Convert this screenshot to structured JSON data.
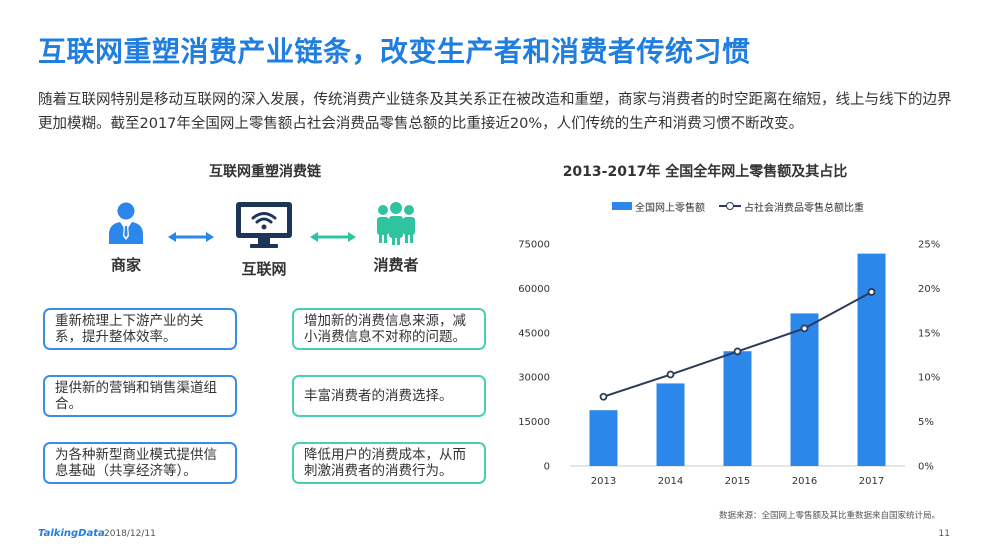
{
  "slide": {
    "title": "互联网重塑消费产业链条，改变生产者和消费者传统习惯",
    "intro": "随着互联网特别是移动互联网的深入发展，传统消费产业链条及其关系正在被改造和重塑，商家与消费者的时空距离在缩短，线上与线下的边界更加模糊。截至2017年全国网上零售额占社会消费品零售总额的比重接近20%，人们传统的生产和消费习惯不断改变。"
  },
  "chain": {
    "title": "互联网重塑消费链",
    "nodes": {
      "merchant": "商家",
      "internet": "互联网",
      "consumer": "消费者"
    },
    "left_boxes": [
      "重新梳理上下游产业的关系，提升整体效率。",
      "提供新的营销和销售渠道组合。",
      "为各种新型商业模式提供信息基础（共享经济等）。"
    ],
    "right_boxes": [
      "增加新的消费信息来源，减小消费信息不对称的问题。",
      "丰富消费者的消费选择。",
      "降低用户的消费成本，从而刺激消费者的消费行为。"
    ]
  },
  "chart_data": {
    "type": "bar",
    "title": "2013-2017年 全国全年网上零售额及其占比",
    "categories": [
      "2013",
      "2014",
      "2015",
      "2016",
      "2017"
    ],
    "series": [
      {
        "name": "全国网上零售额",
        "type": "bar",
        "axis": "left",
        "values": [
          18851,
          27898,
          38773,
          51556,
          71751
        ]
      },
      {
        "name": "占社会消费品零售总额比重",
        "type": "line",
        "axis": "right",
        "values": [
          7.8,
          10.3,
          12.9,
          15.5,
          19.6
        ]
      }
    ],
    "y_left": {
      "min": 0,
      "max": 75000,
      "ticks": [
        "0",
        "15000",
        "30000",
        "45000",
        "60000",
        "75000"
      ]
    },
    "y_right": {
      "min": 0,
      "max": 25,
      "ticks": [
        "0%",
        "5%",
        "10%",
        "15%",
        "20%",
        "25%"
      ]
    },
    "legend_position": "top",
    "grid": false,
    "colors": {
      "bar": "#2b87ea",
      "line": "#2d3a5a"
    }
  },
  "source": "数据来源：全国网上零售额及其比重数据来自国家统计局。",
  "footer": {
    "brand": "TalkingData",
    "date": "2018/12/11",
    "page": "11"
  }
}
